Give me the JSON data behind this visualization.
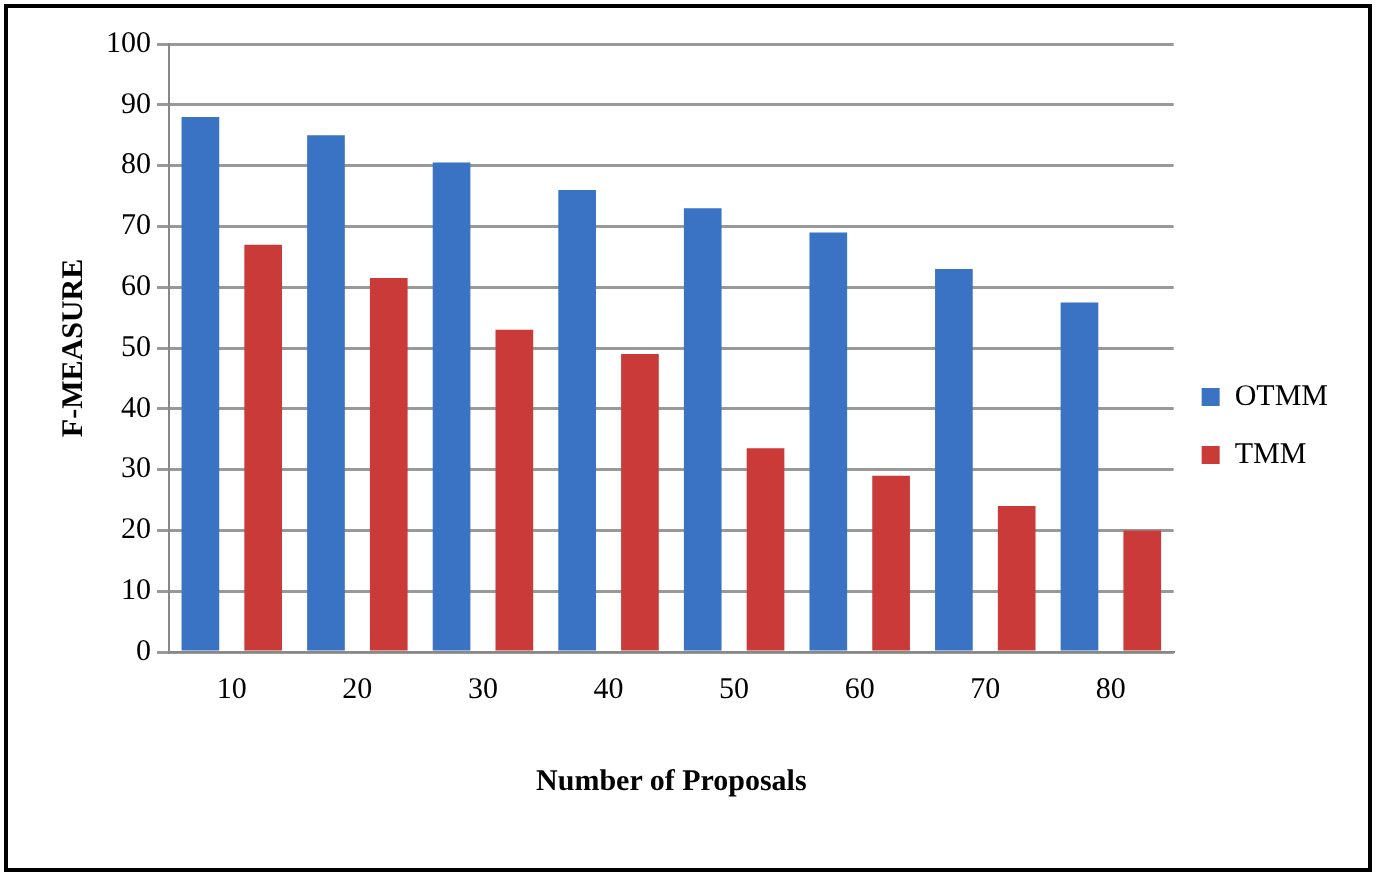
{
  "chart_data": {
    "type": "bar",
    "xlabel": "Number of Proposals",
    "ylabel": "F-MEASURE",
    "categories": [
      "10",
      "20",
      "30",
      "40",
      "50",
      "60",
      "70",
      "80"
    ],
    "series": [
      {
        "name": "OTMM",
        "color": "#3a72c4",
        "values": [
          88,
          85,
          80.5,
          76,
          73,
          69,
          63,
          57.5
        ]
      },
      {
        "name": "TMM",
        "color": "#c93a38",
        "values": [
          67,
          61.5,
          53,
          49,
          33.5,
          29,
          24,
          20
        ]
      }
    ],
    "ylim": [
      0,
      100
    ],
    "yticks": [
      0,
      10,
      20,
      30,
      40,
      50,
      60,
      70,
      80,
      90,
      100
    ],
    "grid": "y",
    "legend": "right"
  }
}
